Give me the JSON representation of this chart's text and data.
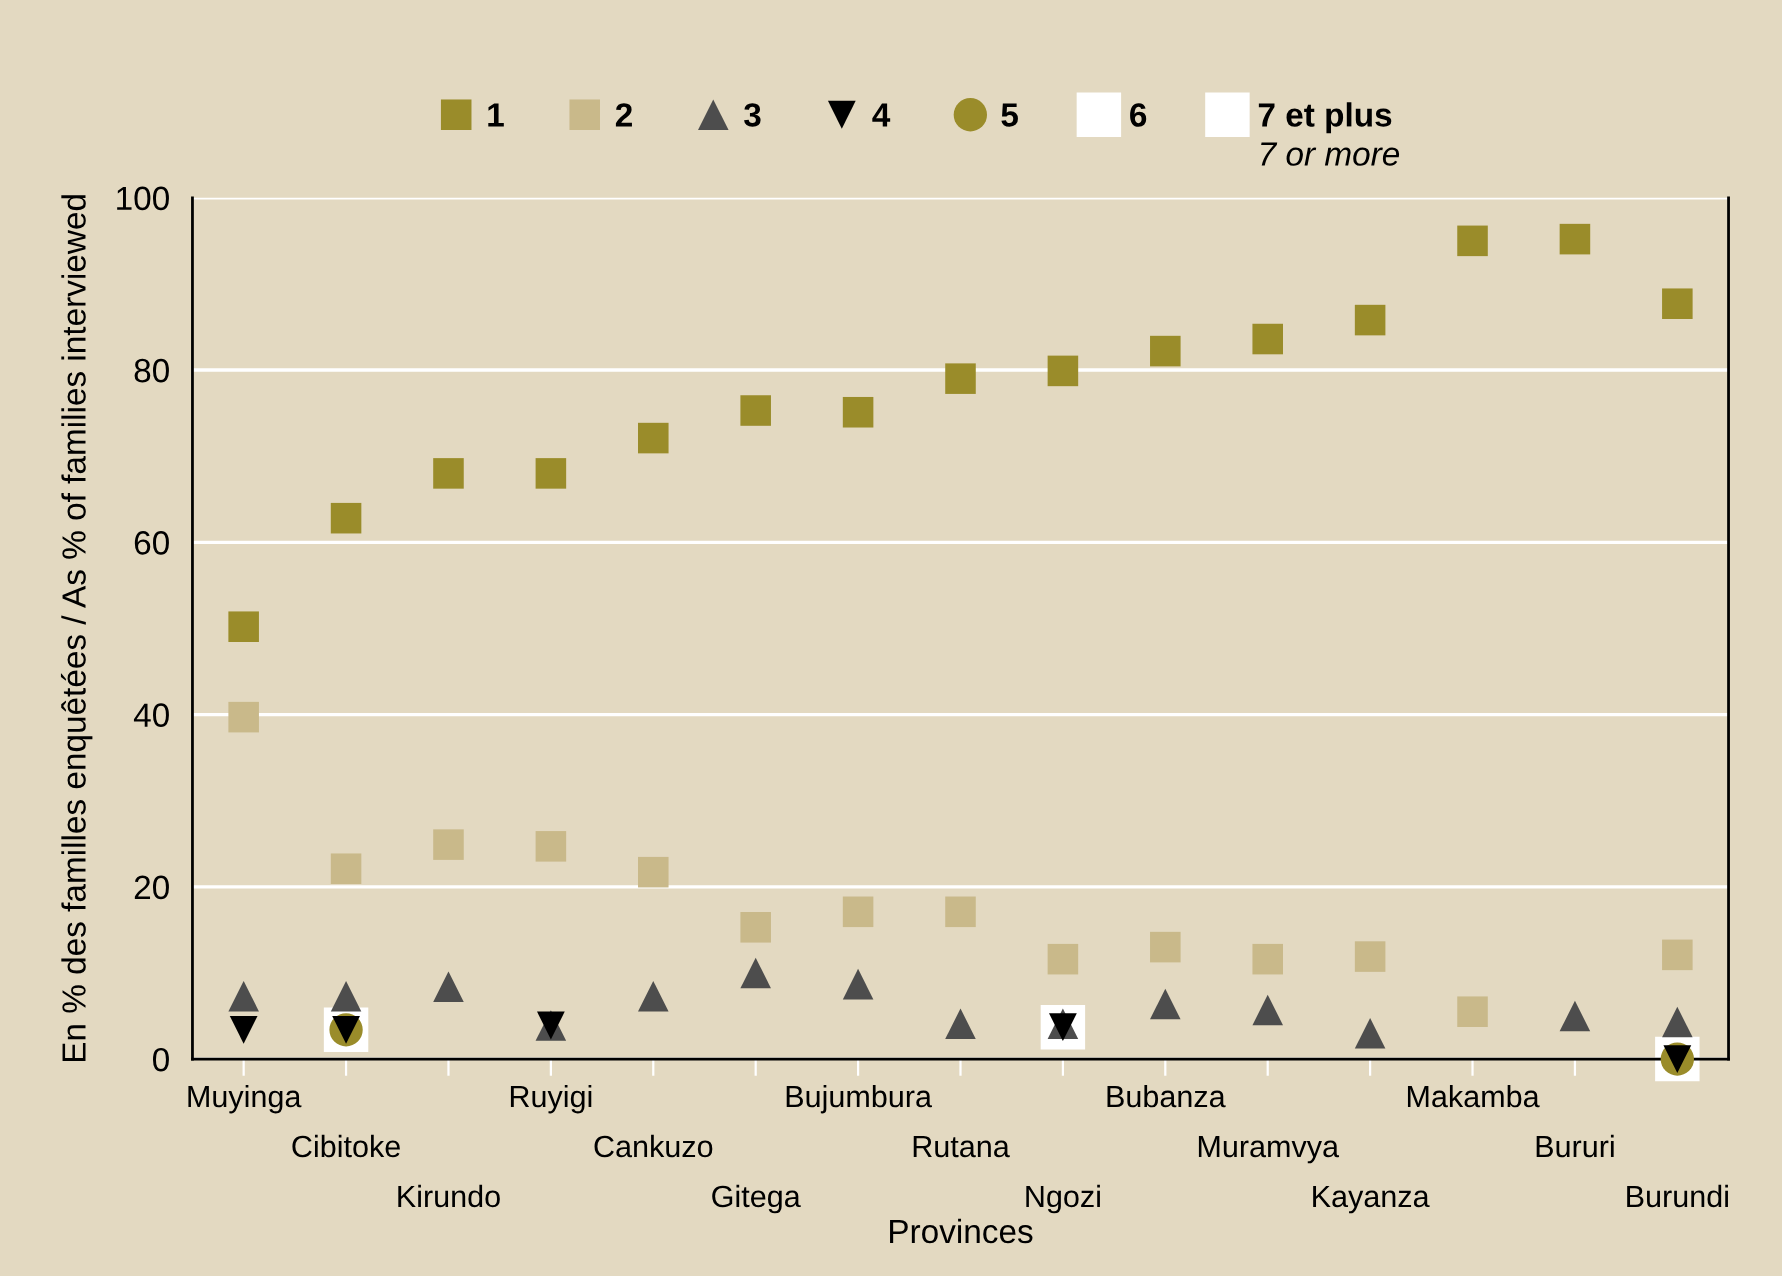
{
  "chart_data": {
    "type": "scatter",
    "xlabel": "Provinces",
    "ylabel": "En % des familles enquêtées / As % of families interviewed",
    "categories": [
      "Muyinga",
      "Cibitoke",
      "Kirundo",
      "Ruyigi",
      "Cankuzo",
      "Gitega",
      "Bujumbura",
      "Rutana",
      "Ngozi",
      "Bubanza",
      "Muramvya",
      "Kayanza",
      "Makamba",
      "Bururi",
      "Burundi"
    ],
    "series": [
      {
        "name": "1",
        "color": "#9a8c2a",
        "marker": "square",
        "values": [
          50.2,
          62.8,
          68,
          68,
          72.1,
          75.3,
          75.1,
          79,
          79.9,
          82.2,
          83.6,
          85.8,
          95,
          95.2,
          87.7
        ]
      },
      {
        "name": "2",
        "color": "#c9b98a",
        "marker": "square",
        "values": [
          39.7,
          22.1,
          24.9,
          24.7,
          21.7,
          15.3,
          17.1,
          17.1,
          11.6,
          13,
          11.6,
          11.9,
          5.5,
          null,
          12.1
        ]
      },
      {
        "name": "3",
        "color": "#4d4d4d",
        "marker": "triangle",
        "values": [
          7.3,
          7.3,
          8.4,
          3.9,
          7.3,
          10,
          8.7,
          4.1,
          4.1,
          6.4,
          5.7,
          3,
          null,
          5,
          4.3
        ]
      },
      {
        "name": "4",
        "color": "#000000",
        "marker": "triangle_down",
        "values": [
          3.4,
          3.4,
          null,
          3.9,
          null,
          null,
          null,
          null,
          3.7,
          null,
          null,
          null,
          null,
          null,
          0
        ]
      },
      {
        "name": "5",
        "color": "#9a8c2a",
        "marker": "circle",
        "values": [
          null,
          3.4,
          null,
          null,
          null,
          null,
          null,
          null,
          null,
          null,
          null,
          null,
          null,
          null,
          0
        ]
      },
      {
        "name": "6",
        "color": "#ffffff",
        "marker": "square",
        "values": [
          null,
          3.4,
          null,
          null,
          null,
          null,
          null,
          null,
          null,
          null,
          null,
          null,
          null,
          null,
          null
        ]
      },
      {
        "name": "7 et plus",
        "color": "#ffffff",
        "marker": "square",
        "values": [
          null,
          null,
          null,
          null,
          null,
          null,
          null,
          null,
          3.7,
          null,
          null,
          null,
          null,
          null,
          0
        ]
      }
    ],
    "annotations": [
      "7 or more"
    ],
    "ylim": [
      0,
      100
    ],
    "yticks": [
      0,
      20,
      40,
      60,
      80,
      100
    ],
    "grid": "y",
    "legend": "top"
  }
}
